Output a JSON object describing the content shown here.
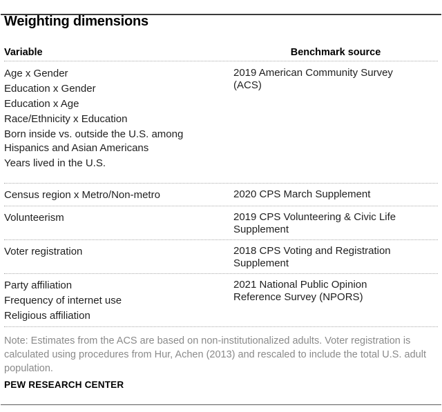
{
  "title": "Weighting dimensions",
  "table": {
    "headers": {
      "variable": "Variable",
      "benchmark": "Benchmark source"
    },
    "rows": [
      {
        "variables": [
          "Age x Gender",
          "Education x Gender",
          "Education x Age",
          "Race/Ethnicity x Education",
          "Born inside vs. outside the U.S. among Hispanics and Asian Americans",
          "Years lived in the U.S."
        ],
        "benchmark": "2019 American Community Survey (ACS)"
      },
      {
        "variables": [
          "Census region x Metro/Non-metro"
        ],
        "benchmark": "2020 CPS March Supplement"
      },
      {
        "variables": [
          "Volunteerism"
        ],
        "benchmark": "2019 CPS Volunteering & Civic Life Supplement"
      },
      {
        "variables": [
          "Voter registration"
        ],
        "benchmark": "2018 CPS Voting and Registration Supplement"
      },
      {
        "variables": [
          "Party affiliation",
          "Frequency of internet use",
          "Religious affiliation"
        ],
        "benchmark": "2021 National Public Opinion Reference Survey (NPORS)"
      }
    ]
  },
  "note": "Note: Estimates from the ACS are based on non-institutionalized adults. Voter registration is calculated using procedures from Hur, Achen (2013) and rescaled to include the total U.S. adult population.",
  "footer": "PEW RESEARCH CENTER",
  "colors": {
    "top_rule": "#3a3a3a",
    "bottom_rule": "#5a5a5a",
    "dotted_separator": "#a9a9a9",
    "body_text": "#1f1f1f",
    "note_text": "#8a8a8a",
    "heading_text": "#000000"
  }
}
